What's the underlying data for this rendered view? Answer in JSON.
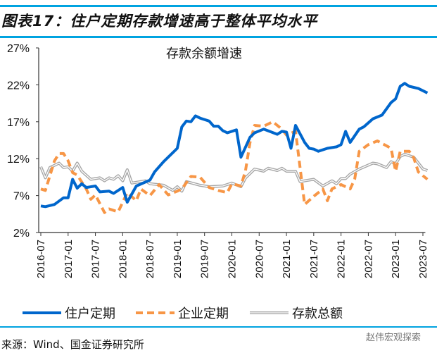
{
  "title": "图表17：住户定期存款增速高于整体平均水平",
  "source": "来源：Wind、国金证券研究所",
  "watermark": "赵伟宏观探索",
  "chart_data": {
    "type": "line",
    "title": "存款余额增速",
    "xlabel": "",
    "ylabel": "",
    "xlim": [
      "2016-07",
      "2023-08"
    ],
    "ylim": [
      2,
      27
    ],
    "yticks": [
      "2%",
      "7%",
      "12%",
      "17%",
      "22%",
      "27%"
    ],
    "ytick_values": [
      2,
      7,
      12,
      17,
      22,
      27
    ],
    "xticks": [
      "2016-07",
      "2017-01",
      "2017-07",
      "2018-01",
      "2018-07",
      "2019-01",
      "2019-07",
      "2020-01",
      "2020-07",
      "2021-01",
      "2021-07",
      "2022-01",
      "2022-07",
      "2023-01",
      "2023-07"
    ],
    "grid": false,
    "legend": "bottom",
    "series": [
      {
        "name": "住户定期",
        "color": "#0066cc",
        "style": "solid",
        "points": [
          [
            "2016-07",
            5.6
          ],
          [
            "2016-08",
            5.5
          ],
          [
            "2016-10",
            5.8
          ],
          [
            "2016-12",
            6.7
          ],
          [
            "2017-01",
            6.7
          ],
          [
            "2017-02",
            9.2
          ],
          [
            "2017-03",
            8.0
          ],
          [
            "2017-04",
            8.6
          ],
          [
            "2017-05",
            8.1
          ],
          [
            "2017-07",
            8.3
          ],
          [
            "2017-08",
            7.5
          ],
          [
            "2017-10",
            7.6
          ],
          [
            "2017-11",
            7.3
          ],
          [
            "2018-01",
            8.1
          ],
          [
            "2018-02",
            6.1
          ],
          [
            "2018-04",
            8.3
          ],
          [
            "2018-07",
            9.1
          ],
          [
            "2018-08",
            10.2
          ],
          [
            "2018-10",
            11.6
          ],
          [
            "2019-01",
            13.4
          ],
          [
            "2019-02",
            16.3
          ],
          [
            "2019-03",
            17.1
          ],
          [
            "2019-04",
            17.0
          ],
          [
            "2019-05",
            17.8
          ],
          [
            "2019-06",
            17.5
          ],
          [
            "2019-08",
            17.1
          ],
          [
            "2019-09",
            16.4
          ],
          [
            "2019-10",
            16.4
          ],
          [
            "2019-11",
            15.8
          ],
          [
            "2019-12",
            15.5
          ],
          [
            "2020-02",
            15.9
          ],
          [
            "2020-03",
            12.2
          ],
          [
            "2020-05",
            14.9
          ],
          [
            "2020-06",
            15.5
          ],
          [
            "2020-08",
            16.0
          ],
          [
            "2020-11",
            15.3
          ],
          [
            "2020-12",
            15.7
          ],
          [
            "2021-01",
            15.6
          ],
          [
            "2021-02",
            13.4
          ],
          [
            "2021-03",
            16.5
          ],
          [
            "2021-05",
            14.2
          ],
          [
            "2021-06",
            13.4
          ],
          [
            "2021-07",
            13.3
          ],
          [
            "2021-08",
            13.0
          ],
          [
            "2021-10",
            13.4
          ],
          [
            "2021-12",
            13.6
          ],
          [
            "2022-01",
            13.9
          ],
          [
            "2022-02",
            15.7
          ],
          [
            "2022-03",
            14.2
          ],
          [
            "2022-05",
            16.0
          ],
          [
            "2022-06",
            16.3
          ],
          [
            "2022-08",
            17.4
          ],
          [
            "2022-10",
            17.9
          ],
          [
            "2022-12",
            19.6
          ],
          [
            "2023-01",
            20.1
          ],
          [
            "2023-02",
            21.8
          ],
          [
            "2023-03",
            22.2
          ],
          [
            "2023-04",
            21.8
          ],
          [
            "2023-06",
            21.5
          ],
          [
            "2023-08",
            20.9
          ]
        ]
      },
      {
        "name": "企业定期",
        "color": "#f79646",
        "style": "dashed",
        "points": [
          [
            "2016-07",
            7.9
          ],
          [
            "2016-08",
            7.7
          ],
          [
            "2016-10",
            11.7
          ],
          [
            "2016-11",
            12.7
          ],
          [
            "2016-12",
            12.7
          ],
          [
            "2017-01",
            11.7
          ],
          [
            "2017-02",
            10.1
          ],
          [
            "2017-03",
            9.8
          ],
          [
            "2017-05",
            7.9
          ],
          [
            "2017-06",
            6.5
          ],
          [
            "2017-07",
            7.1
          ],
          [
            "2017-09",
            4.7
          ],
          [
            "2017-10",
            5.2
          ],
          [
            "2017-12",
            4.8
          ],
          [
            "2018-02",
            7.4
          ],
          [
            "2018-04",
            6.3
          ],
          [
            "2018-05",
            7.9
          ],
          [
            "2018-07",
            7.0
          ],
          [
            "2018-09",
            8.5
          ],
          [
            "2018-11",
            7.1
          ],
          [
            "2019-01",
            7.6
          ],
          [
            "2019-02",
            7.9
          ],
          [
            "2019-04",
            9.6
          ],
          [
            "2019-06",
            9.5
          ],
          [
            "2019-08",
            8.1
          ],
          [
            "2019-10",
            7.7
          ],
          [
            "2019-12",
            7.4
          ],
          [
            "2020-01",
            8.6
          ],
          [
            "2020-03",
            8.3
          ],
          [
            "2020-04",
            10.4
          ],
          [
            "2020-05",
            14.2
          ],
          [
            "2020-06",
            16.5
          ],
          [
            "2020-08",
            16.4
          ],
          [
            "2020-10",
            17.0
          ],
          [
            "2020-12",
            16.0
          ],
          [
            "2021-01",
            15.2
          ],
          [
            "2021-03",
            15.7
          ],
          [
            "2021-04",
            10.8
          ],
          [
            "2021-05",
            5.8
          ],
          [
            "2021-07",
            6.9
          ],
          [
            "2021-09",
            7.9
          ],
          [
            "2021-10",
            6.3
          ],
          [
            "2021-11",
            7.9
          ],
          [
            "2022-01",
            8.5
          ],
          [
            "2022-03",
            7.9
          ],
          [
            "2022-04",
            9.2
          ],
          [
            "2022-05",
            13.0
          ],
          [
            "2022-07",
            13.9
          ],
          [
            "2022-09",
            14.4
          ],
          [
            "2022-12",
            13.4
          ],
          [
            "2023-01",
            10.3
          ],
          [
            "2023-02",
            13.0
          ],
          [
            "2023-04",
            13.0
          ],
          [
            "2023-05",
            12.1
          ],
          [
            "2023-06",
            10.2
          ],
          [
            "2023-08",
            9.2
          ]
        ]
      },
      {
        "name": "存款总额",
        "color": "#a6a6a6",
        "style": "double",
        "points": [
          [
            "2016-07",
            10.9
          ],
          [
            "2016-08",
            9.4
          ],
          [
            "2016-09",
            10.8
          ],
          [
            "2016-11",
            11.4
          ],
          [
            "2016-12",
            10.8
          ],
          [
            "2017-01",
            10.9
          ],
          [
            "2017-02",
            10.3
          ],
          [
            "2017-03",
            11.4
          ],
          [
            "2017-04",
            10.3
          ],
          [
            "2017-06",
            9.2
          ],
          [
            "2017-08",
            9.4
          ],
          [
            "2017-09",
            9.0
          ],
          [
            "2017-10",
            9.4
          ],
          [
            "2017-11",
            9.2
          ],
          [
            "2017-12",
            9.7
          ],
          [
            "2018-01",
            9.0
          ],
          [
            "2018-02",
            10.5
          ],
          [
            "2018-03",
            8.7
          ],
          [
            "2018-06",
            9.0
          ],
          [
            "2018-07",
            8.6
          ],
          [
            "2018-10",
            8.4
          ],
          [
            "2018-12",
            7.7
          ],
          [
            "2019-01",
            8.2
          ],
          [
            "2019-02",
            7.6
          ],
          [
            "2019-03",
            8.9
          ],
          [
            "2019-06",
            8.4
          ],
          [
            "2019-08",
            8.2
          ],
          [
            "2019-11",
            8.3
          ],
          [
            "2020-01",
            8.7
          ],
          [
            "2020-03",
            8.2
          ],
          [
            "2020-04",
            9.4
          ],
          [
            "2020-06",
            10.6
          ],
          [
            "2020-08",
            10.3
          ],
          [
            "2020-09",
            10.7
          ],
          [
            "2020-11",
            10.4
          ],
          [
            "2020-12",
            10.7
          ],
          [
            "2021-01",
            10.3
          ],
          [
            "2021-03",
            10.3
          ],
          [
            "2021-04",
            8.9
          ],
          [
            "2021-07",
            9.2
          ],
          [
            "2021-09",
            8.3
          ],
          [
            "2021-11",
            9.0
          ],
          [
            "2021-12",
            8.6
          ],
          [
            "2022-01",
            9.3
          ],
          [
            "2022-02",
            9.3
          ],
          [
            "2022-03",
            9.9
          ],
          [
            "2022-05",
            10.6
          ],
          [
            "2022-08",
            11.4
          ],
          [
            "2022-09",
            11.3
          ],
          [
            "2022-11",
            10.8
          ],
          [
            "2022-12",
            11.6
          ],
          [
            "2023-01",
            11.3
          ],
          [
            "2023-02",
            12.3
          ],
          [
            "2023-03",
            12.6
          ],
          [
            "2023-05",
            12.2
          ],
          [
            "2023-07",
            10.6
          ],
          [
            "2023-08",
            10.4
          ]
        ]
      }
    ]
  }
}
